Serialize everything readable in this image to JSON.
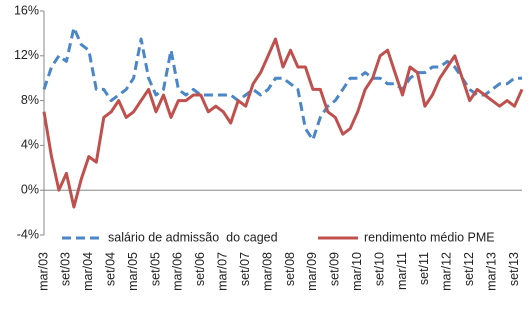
{
  "chart_data": {
    "type": "line",
    "categories": [
      "mar/03",
      null,
      null,
      "set/03",
      null,
      null,
      "mar/04",
      null,
      null,
      "set/04",
      null,
      null,
      "mar/05",
      null,
      null,
      "set/05",
      null,
      null,
      "mar/06",
      null,
      null,
      "set/06",
      null,
      null,
      "mar/07",
      null,
      null,
      "set/07",
      null,
      null,
      "mar/08",
      null,
      null,
      "set/08",
      null,
      null,
      "mar/09",
      null,
      null,
      "set/09",
      null,
      null,
      "mar/10",
      null,
      null,
      "set/10",
      null,
      null,
      "mar/11",
      null,
      null,
      "set/11",
      null,
      null,
      "mar/12",
      null,
      null,
      "set/12",
      null,
      null,
      "mar/13",
      null,
      null,
      "set/13",
      null
    ],
    "series": [
      {
        "name": "salário de admissão  do caged",
        "color": "#4a86c8",
        "dashed": true,
        "values": [
          9,
          11,
          12,
          11.5,
          14.5,
          13,
          12.5,
          9,
          9,
          8,
          8.5,
          9,
          10,
          13.5,
          10,
          8.5,
          9,
          12.5,
          9,
          8.5,
          9,
          8.5,
          8.5,
          8.5,
          8.5,
          8.5,
          8,
          8.5,
          9,
          8.5,
          9,
          10,
          10,
          9.5,
          9,
          5.5,
          4.5,
          6.5,
          7.5,
          8,
          9,
          10,
          10,
          10.5,
          10,
          10,
          9.5,
          9.5,
          9,
          10,
          10.5,
          10.5,
          11,
          11,
          11.5,
          11,
          10,
          9,
          8.5,
          8.5,
          9,
          9.5,
          9.5,
          10,
          10
        ]
      },
      {
        "name": "rendimento médio PME",
        "color": "#c0504d",
        "dashed": false,
        "values": [
          7,
          3,
          0,
          1.5,
          -1.5,
          1,
          3,
          2.5,
          6.5,
          7,
          8,
          6.5,
          7,
          8,
          9,
          7,
          8.5,
          6.5,
          8,
          8,
          8.5,
          8.5,
          7,
          7.5,
          7,
          6,
          8,
          7.5,
          9.5,
          10.5,
          12,
          13.5,
          11,
          12.5,
          11,
          11,
          9,
          9,
          7,
          6.5,
          5,
          5.5,
          7,
          9,
          10,
          12,
          12.5,
          10.5,
          8.5,
          11,
          10.5,
          7.5,
          8.5,
          10,
          11,
          12,
          10,
          8,
          9,
          8.5,
          8,
          7.5,
          8,
          7.5,
          9
        ]
      }
    ],
    "ylim": [
      -4,
      16
    ],
    "yticks": [
      {
        "value": -4,
        "label": "-4%"
      },
      {
        "value": 0,
        "label": "0%"
      },
      {
        "value": 4,
        "label": "4%"
      },
      {
        "value": 8,
        "label": "8%"
      },
      {
        "value": 12,
        "label": "12%"
      },
      {
        "value": 16,
        "label": "16%"
      }
    ]
  }
}
